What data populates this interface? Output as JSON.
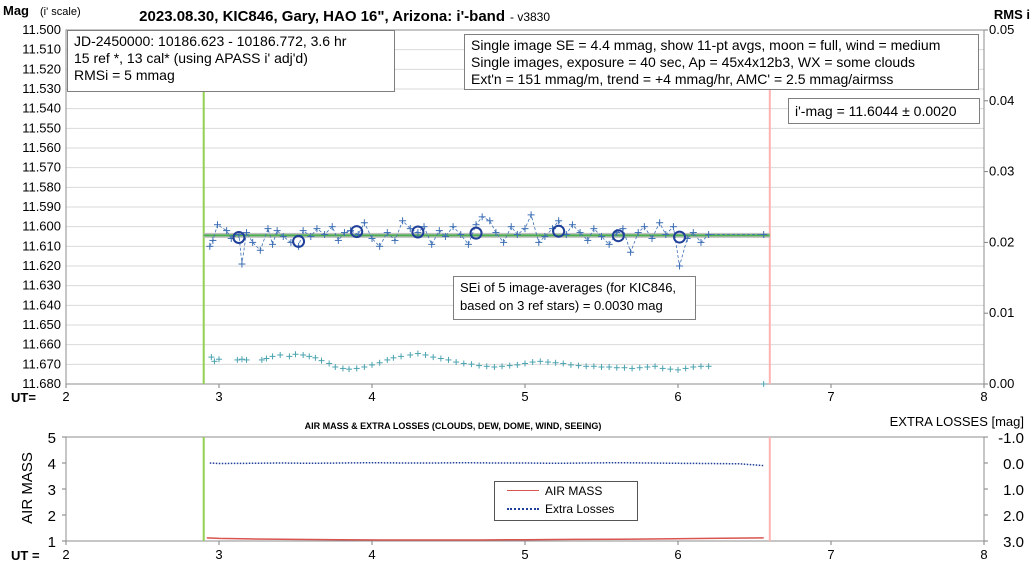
{
  "chart_data": [
    {
      "type": "scatter",
      "title": "2023.08.30, KIC846, Gary, HAO 16\", Arizona: i'-band",
      "version": "- v3830",
      "ylabel_main": "Mag",
      "ylabel_suffix": "(i' scale)",
      "y2label": "RMS i",
      "xlabel": "UT=",
      "xlim": [
        2,
        8
      ],
      "xticks": [
        "2",
        "3",
        "4",
        "5",
        "6",
        "7",
        "8"
      ],
      "ylim": [
        11.5,
        11.68
      ],
      "yreversed": true,
      "yticks": [
        "11.500",
        "11.510",
        "11.520",
        "11.530",
        "11.540",
        "11.550",
        "11.560",
        "11.570",
        "11.580",
        "11.590",
        "11.600",
        "11.610",
        "11.620",
        "11.630",
        "11.640",
        "11.650",
        "11.660",
        "11.670",
        "11.680"
      ],
      "y2lim": [
        0,
        0.05
      ],
      "y2ticks": [
        "0.00",
        "0.01",
        "0.02",
        "0.03",
        "0.04",
        "0.05"
      ],
      "gridlines": true,
      "vertical_markers": [
        {
          "x": 2.9,
          "color": "#92d050",
          "meaning": "start"
        },
        {
          "x": 6.6,
          "color": "#ffb3b3",
          "meaning": "end"
        }
      ],
      "fit_line": {
        "x": [
          2.9,
          6.6
        ],
        "y": 11.6044,
        "color": "#4caf50"
      },
      "fit_line_gray": {
        "x": [
          2.9,
          6.6
        ],
        "y": 11.6044,
        "color": "#c0c0c0"
      },
      "series": [
        {
          "name": "Single images",
          "style": "plus-dashed",
          "color": "#3d6fb5",
          "x": [
            2.94,
            2.96,
            2.99,
            3.05,
            3.08,
            3.13,
            3.15,
            3.18,
            3.22,
            3.27,
            3.32,
            3.35,
            3.38,
            3.42,
            3.47,
            3.52,
            3.55,
            3.6,
            3.64,
            3.69,
            3.74,
            3.78,
            3.82,
            3.86,
            3.91,
            3.95,
            4.0,
            4.05,
            4.1,
            4.15,
            4.2,
            4.25,
            4.3,
            4.34,
            4.39,
            4.44,
            4.48,
            4.53,
            4.58,
            4.63,
            4.68,
            4.72,
            4.77,
            4.81,
            4.86,
            4.91,
            4.95,
            5.0,
            5.04,
            5.09,
            5.13,
            5.18,
            5.22,
            5.27,
            5.31,
            5.36,
            5.41,
            5.45,
            5.5,
            5.55,
            5.6,
            5.64,
            5.69,
            5.74,
            5.78,
            5.83,
            5.88,
            5.92,
            5.97,
            6.01,
            6.06,
            6.1,
            6.15,
            6.2,
            6.56
          ],
          "y": [
            11.61,
            11.607,
            11.599,
            11.602,
            11.606,
            11.604,
            11.619,
            11.603,
            11.608,
            11.612,
            11.601,
            11.609,
            11.602,
            11.605,
            11.608,
            11.61,
            11.602,
            11.605,
            11.601,
            11.604,
            11.6,
            11.607,
            11.603,
            11.602,
            11.604,
            11.598,
            11.606,
            11.61,
            11.603,
            11.607,
            11.597,
            11.601,
            11.603,
            11.6,
            11.609,
            11.602,
            11.605,
            11.6,
            11.604,
            11.609,
            11.599,
            11.595,
            11.597,
            11.603,
            11.608,
            11.6,
            11.604,
            11.601,
            11.594,
            11.608,
            11.605,
            11.601,
            11.597,
            11.604,
            11.599,
            11.603,
            11.607,
            11.601,
            11.605,
            11.609,
            11.603,
            11.601,
            11.613,
            11.603,
            11.6,
            11.606,
            11.598,
            11.604,
            11.6,
            11.62,
            11.606,
            11.603,
            11.608,
            11.604,
            11.604
          ]
        },
        {
          "name": "11-pt averages",
          "style": "open-circle",
          "color": "#1f3f99",
          "x": [
            3.13,
            3.52,
            3.9,
            4.3,
            4.68,
            5.22,
            5.61,
            6.01
          ],
          "y": [
            11.6055,
            11.6075,
            11.6025,
            11.6027,
            11.6033,
            11.6023,
            11.6046,
            11.6053
          ]
        },
        {
          "name": "RMS i",
          "style": "plus",
          "axis": "y2",
          "color": "#4ba3b0",
          "x": [
            2.95,
            2.97,
            3.0,
            3.12,
            3.15,
            3.18,
            3.28,
            3.31,
            3.35,
            3.4,
            3.46,
            3.5,
            3.55,
            3.59,
            3.63,
            3.67,
            3.72,
            3.76,
            3.81,
            3.85,
            3.9,
            3.95,
            4.0,
            4.05,
            4.1,
            4.14,
            4.19,
            4.25,
            4.3,
            4.35,
            4.4,
            4.45,
            4.5,
            4.55,
            4.6,
            4.65,
            4.7,
            4.75,
            4.8,
            4.85,
            4.9,
            4.95,
            5.0,
            5.05,
            5.1,
            5.15,
            5.2,
            5.25,
            5.3,
            5.35,
            5.4,
            5.45,
            5.5,
            5.55,
            5.6,
            5.65,
            5.7,
            5.75,
            5.8,
            5.85,
            5.9,
            5.95,
            6.0,
            6.05,
            6.1,
            6.15,
            6.2,
            6.56
          ],
          "y": [
            0.0038,
            0.0032,
            0.0035,
            0.0034,
            0.0035,
            0.0034,
            0.0034,
            0.0036,
            0.0039,
            0.0041,
            0.0039,
            0.0042,
            0.0041,
            0.0039,
            0.0037,
            0.0033,
            0.0029,
            0.0024,
            0.0022,
            0.0021,
            0.0022,
            0.0024,
            0.0027,
            0.003,
            0.0034,
            0.0037,
            0.0039,
            0.0041,
            0.0043,
            0.0041,
            0.0038,
            0.0036,
            0.0034,
            0.0031,
            0.0029,
            0.0028,
            0.0026,
            0.0025,
            0.0024,
            0.0025,
            0.0026,
            0.0027,
            0.0029,
            0.0031,
            0.0032,
            0.0031,
            0.003,
            0.0029,
            0.0027,
            0.0026,
            0.0025,
            0.0025,
            0.0024,
            0.0024,
            0.0023,
            0.0023,
            0.0022,
            0.0023,
            0.0024,
            0.0025,
            0.0022,
            0.0021,
            0.002,
            0.0022,
            0.0024,
            0.0025,
            0.0025,
            0.0
          ]
        }
      ],
      "info_box_left": [
        "JD-2450000: 10186.623 - 10186.772, 3.6  hr",
        "15 ref *, 13 cal* (using APASS i' adj'd)",
        "RMSi = 5 mmag"
      ],
      "info_box_right": [
        "Single image SE = 4.4 mmag, show 11-pt avgs, moon = full, wind = medium",
        "Single images, exposure = 40 sec, Ap = 45x4x12b3, WX = some clouds",
        "Ext'n = 151 mmag/m, trend = +4 mmag/hr, AMC' = 2.5 mmag/airmss"
      ],
      "result_box": "i'-mag = 11.6044 ± 0.0020",
      "sei_box": [
        "SEi of 5 image-averages (for KIC846,",
        "based on 3 ref stars) = 0.0030 mag"
      ]
    },
    {
      "type": "line",
      "title": "AIR MASS & EXTRA LOSSES (CLOUDS, DEW, DOME, WIND, SEEING)",
      "ylabel": "AIR MASS",
      "y2label": "EXTRA LOSSES [mag]",
      "xlabel": "UT =",
      "xlim": [
        2,
        8
      ],
      "xticks": [
        "2",
        "3",
        "4",
        "5",
        "6",
        "7",
        "8"
      ],
      "ylim": [
        1,
        5
      ],
      "yticks": [
        "1",
        "2",
        "3",
        "4",
        "5"
      ],
      "y2lim": [
        3.0,
        -1.0
      ],
      "y2ticks": [
        "-1.0",
        "0.0",
        "1.0",
        "2.0",
        "3.0"
      ],
      "vertical_markers": [
        {
          "x": 2.9,
          "color": "#92d050"
        },
        {
          "x": 6.6,
          "color": "#ffb3b3"
        }
      ],
      "series": [
        {
          "name": "AIR MASS",
          "color": "#d9534f",
          "style": "solid",
          "x": [
            2.92,
            3.0,
            3.2,
            3.5,
            3.8,
            4.1,
            4.4,
            4.7,
            5.0,
            5.3,
            5.6,
            5.9,
            6.2,
            6.56
          ],
          "y": [
            1.12,
            1.1,
            1.08,
            1.06,
            1.05,
            1.04,
            1.04,
            1.04,
            1.05,
            1.06,
            1.07,
            1.08,
            1.1,
            1.12
          ]
        },
        {
          "name": "Extra Losses",
          "color": "#1f3f99",
          "style": "dotted",
          "axis": "y2",
          "x": [
            2.94,
            3.0,
            3.2,
            3.4,
            3.6,
            3.8,
            4.0,
            4.2,
            4.4,
            4.6,
            4.8,
            5.0,
            5.2,
            5.4,
            5.6,
            5.8,
            6.0,
            6.2,
            6.4,
            6.56
          ],
          "y": [
            0.0,
            0.02,
            0.01,
            0.0,
            0.01,
            0.0,
            -0.01,
            0.0,
            0.0,
            -0.01,
            0.0,
            0.0,
            0.01,
            0.0,
            -0.01,
            0.0,
            0.01,
            0.02,
            0.03,
            0.1
          ]
        }
      ]
    }
  ]
}
